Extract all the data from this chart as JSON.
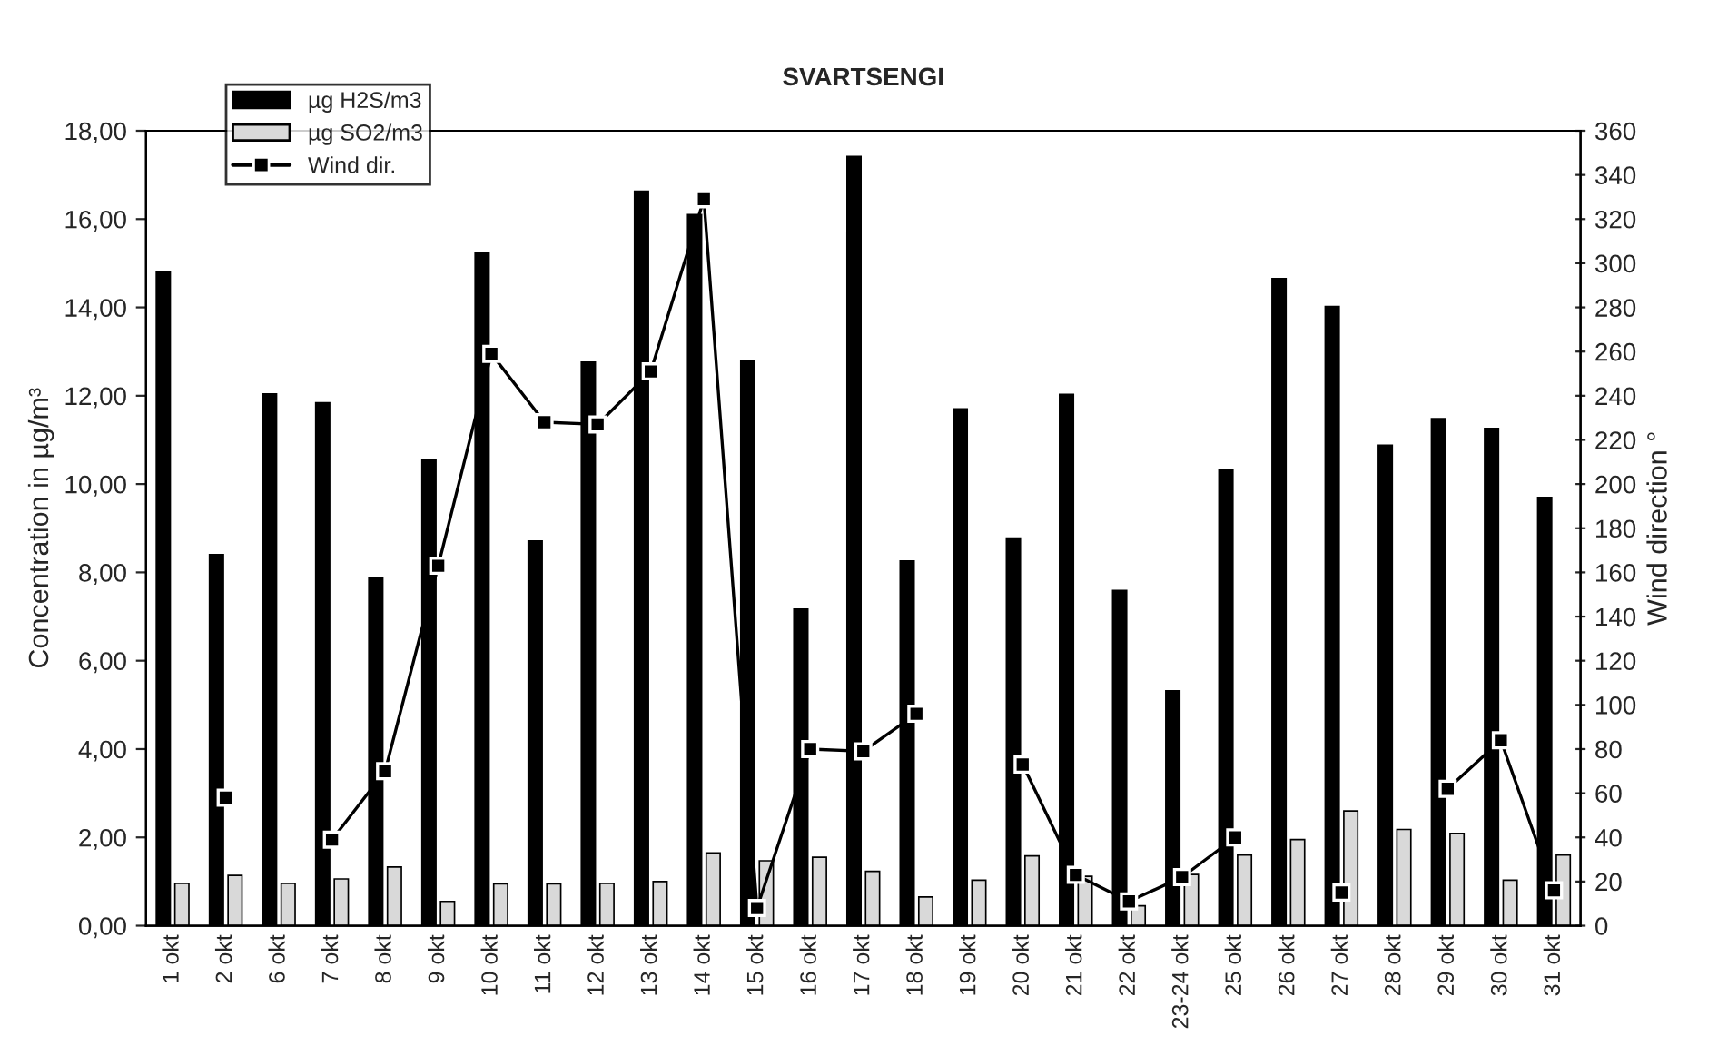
{
  "chart_data": {
    "type": "bar",
    "title": "SVARTSENGI",
    "ylabel": "Concentration in µg/m³",
    "y2label": "Wind direction °",
    "categories": [
      "1 okt",
      "2 okt",
      "6 okt",
      "7 okt",
      "8 okt",
      "9 okt",
      "10 okt",
      "11 okt",
      "12 okt",
      "13 okt",
      "14 okt",
      "15 okt",
      "16 okt",
      "17 okt",
      "18 okt",
      "19 okt",
      "20 okt",
      "21 okt",
      "22 okt",
      "23-24 okt",
      "25 okt",
      "26 okt",
      "27 okt",
      "28 okt",
      "29 okt",
      "30 okt",
      "31 okt"
    ],
    "series": [
      {
        "name": "µg H2S/m3",
        "color": "#000000",
        "values": [
          14.8,
          8.4,
          12.04,
          11.84,
          7.89,
          10.56,
          15.25,
          8.71,
          12.76,
          16.63,
          16.1,
          12.8,
          7.17,
          17.42,
          8.26,
          11.7,
          8.78,
          12.03,
          7.59,
          5.32,
          10.33,
          14.65,
          14.02,
          10.88,
          11.48,
          11.26,
          9.7
        ]
      },
      {
        "name": "µg SO2/m3",
        "color": "#d9d9d9",
        "values": [
          0.96,
          1.14,
          0.96,
          1.06,
          1.33,
          0.55,
          0.95,
          0.95,
          0.96,
          1.0,
          1.65,
          1.47,
          1.55,
          1.23,
          0.65,
          1.03,
          1.58,
          1.12,
          0.45,
          1.16,
          1.6,
          1.95,
          2.6,
          2.18,
          2.09,
          1.03,
          1.6
        ]
      },
      {
        "name": "Wind dir.",
        "type": "line",
        "axis": "y2",
        "color": "#000000",
        "marker": "square",
        "line_style": "solid",
        "values": [
          null,
          58,
          null,
          39,
          70,
          163,
          259,
          228,
          227,
          251,
          329,
          8,
          80,
          79,
          96,
          null,
          73,
          23,
          11,
          22,
          40,
          null,
          15,
          null,
          62,
          84,
          16
        ]
      }
    ],
    "ylim": [
      0,
      18
    ],
    "yticks": [
      {
        "value": 0,
        "label": "0,00"
      },
      {
        "value": 2,
        "label": "2,00"
      },
      {
        "value": 4,
        "label": "4,00"
      },
      {
        "value": 6,
        "label": "6,00"
      },
      {
        "value": 8,
        "label": "8,00"
      },
      {
        "value": 10,
        "label": "10,00"
      },
      {
        "value": 12,
        "label": "12,00"
      },
      {
        "value": 14,
        "label": "14,00"
      },
      {
        "value": 16,
        "label": "16,00"
      },
      {
        "value": 18,
        "label": "18,00"
      }
    ],
    "y2lim": [
      0,
      360
    ],
    "y2ticks": [
      0,
      20,
      40,
      60,
      80,
      100,
      120,
      140,
      160,
      180,
      200,
      220,
      240,
      260,
      280,
      300,
      320,
      340,
      360
    ],
    "grid": false,
    "legend": "top left"
  }
}
